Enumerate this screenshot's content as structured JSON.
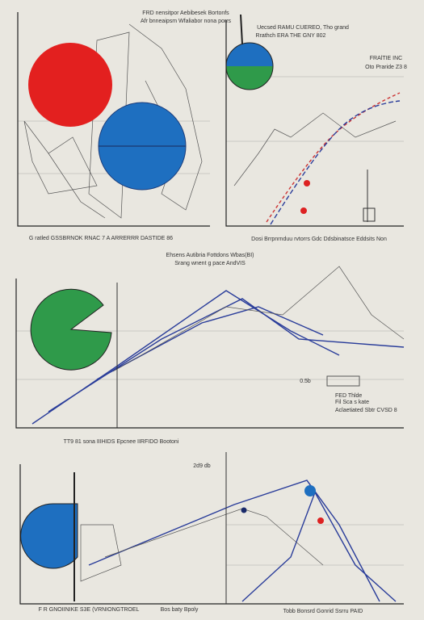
{
  "texts": [
    "FRD nensitpor Aebibesek Bortonfs",
    "Afr bnneaipsm Wfaliabor nona porrs",
    "Uecsed RAMU CUEREO, Tho grand",
    "Rrathch ERA THE GNY 802",
    "FRAlTIE INC",
    "Oto Praride Z3 8",
    "G ratled GSSBRNOK RNAC 7 A ARRERRR DASTIDE 86",
    "Dosi Brrpnrnduu rvtorrs Gdc Ddsbinatsce Eddsits Non",
    "Ehsens Autibria Fottdons Wbas(BI)",
    "Srang wnent g pace AndVIS",
    "0.5b",
    "FED Thlde",
    "Fil Sca s kate",
    "Aclaetiated Sbtr CVSD 8",
    "TT9 81 sona IIIHIDS Epcnee IIRFIDO Bootoni",
    "2d9 db",
    "F R GNOIINIKE S3E (VRNIONGTROEL",
    "Bos baty Bpoly",
    "Tobb Bonsrd Gonrid Ssrru PAID"
  ]
}
